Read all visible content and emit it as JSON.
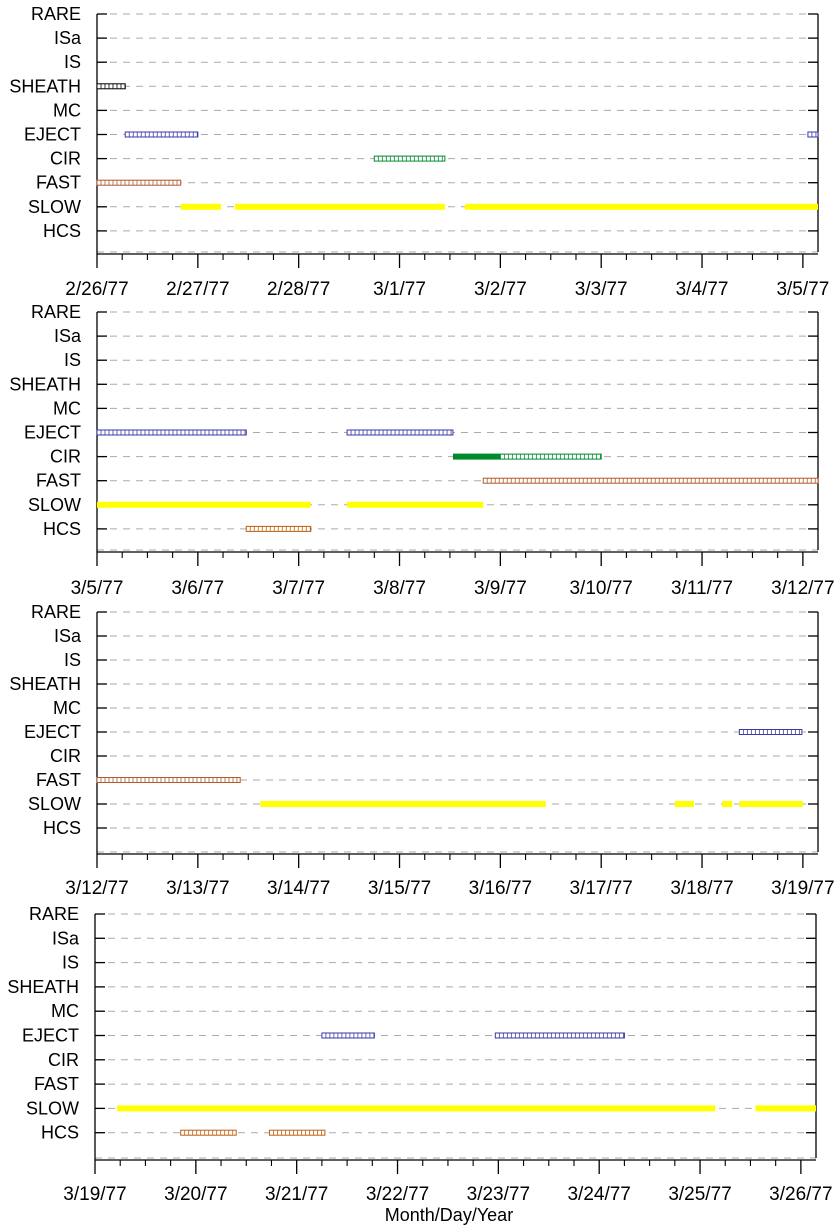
{
  "colors": {
    "axis": "#000000",
    "grid": "#aaaaaa",
    "SLOW": "#ffff00",
    "FAST": "#b05a2a",
    "CIR": "#008a2e",
    "EJECT": "#3a3aa8",
    "SHEATH": "#000000",
    "HCS": "#c06010"
  },
  "chart_data": {
    "type": "timeline",
    "xlabel": "Month/Day/Year",
    "categories": [
      "RARE",
      "ISa",
      "IS",
      "SHEATH",
      "MC",
      "EJECT",
      "CIR",
      "FAST",
      "SLOW",
      "HCS"
    ],
    "grid": true,
    "panels": [
      {
        "xlim": [
          0,
          7.15
        ],
        "tick_labels": [
          "2/26/77",
          "2/27/77",
          "2/28/77",
          "3/1/77",
          "3/2/77",
          "3/3/77",
          "3/4/77",
          "3/5/77"
        ],
        "intervals": [
          {
            "category": "SHEATH",
            "start": 0.0,
            "end": 0.28,
            "style": "hollow"
          },
          {
            "category": "EJECT",
            "start": 0.28,
            "end": 1.0,
            "style": "hollow"
          },
          {
            "category": "EJECT",
            "start": 7.05,
            "end": 7.15,
            "style": "hollow"
          },
          {
            "category": "CIR",
            "start": 2.75,
            "end": 3.45,
            "style": "hollow"
          },
          {
            "category": "FAST",
            "start": 0.0,
            "end": 0.83,
            "style": "hollow"
          },
          {
            "category": "SLOW",
            "start": 0.83,
            "end": 1.23,
            "style": "solid"
          },
          {
            "category": "SLOW",
            "start": 1.37,
            "end": 3.45,
            "style": "solid"
          },
          {
            "category": "SLOW",
            "start": 3.65,
            "end": 7.15,
            "style": "solid"
          }
        ]
      },
      {
        "xlim": [
          0,
          7.15
        ],
        "tick_labels": [
          "3/5/77",
          "3/6/77",
          "3/7/77",
          "3/8/77",
          "3/9/77",
          "3/10/77",
          "3/11/77",
          "3/12/77"
        ],
        "intervals": [
          {
            "category": "EJECT",
            "start": 0.0,
            "end": 1.48,
            "style": "hollow"
          },
          {
            "category": "EJECT",
            "start": 2.48,
            "end": 3.53,
            "style": "hollow"
          },
          {
            "category": "CIR",
            "start": 3.53,
            "end": 4.0,
            "style": "solid"
          },
          {
            "category": "CIR",
            "start": 4.0,
            "end": 5.0,
            "style": "hollow"
          },
          {
            "category": "FAST",
            "start": 3.83,
            "end": 7.15,
            "style": "hollow"
          },
          {
            "category": "SLOW",
            "start": 0.0,
            "end": 2.12,
            "style": "solid"
          },
          {
            "category": "SLOW",
            "start": 2.48,
            "end": 3.83,
            "style": "solid"
          },
          {
            "category": "HCS",
            "start": 1.48,
            "end": 2.12,
            "style": "hollow"
          }
        ]
      },
      {
        "xlim": [
          0,
          7.15
        ],
        "tick_labels": [
          "3/12/77",
          "3/13/77",
          "3/14/77",
          "3/15/77",
          "3/16/77",
          "3/17/77",
          "3/18/77",
          "3/19/77"
        ],
        "intervals": [
          {
            "category": "EJECT",
            "start": 6.37,
            "end": 6.99,
            "style": "hollow"
          },
          {
            "category": "FAST",
            "start": 0.0,
            "end": 1.42,
            "style": "hollow"
          },
          {
            "category": "SLOW",
            "start": 1.62,
            "end": 4.45,
            "style": "solid"
          },
          {
            "category": "SLOW",
            "start": 5.73,
            "end": 5.92,
            "style": "solid"
          },
          {
            "category": "SLOW",
            "start": 6.2,
            "end": 6.3,
            "style": "solid"
          },
          {
            "category": "SLOW",
            "start": 6.37,
            "end": 7.0,
            "style": "solid"
          }
        ]
      },
      {
        "xlim": [
          0,
          7.15
        ],
        "tick_labels": [
          "3/19/77",
          "3/20/77",
          "3/21/77",
          "3/22/77",
          "3/23/77",
          "3/24/77",
          "3/25/77",
          "3/26/77"
        ],
        "intervals": [
          {
            "category": "EJECT",
            "start": 2.25,
            "end": 2.77,
            "style": "hollow"
          },
          {
            "category": "EJECT",
            "start": 3.97,
            "end": 5.25,
            "style": "hollow"
          },
          {
            "category": "SLOW",
            "start": 0.22,
            "end": 6.15,
            "style": "solid"
          },
          {
            "category": "SLOW",
            "start": 6.55,
            "end": 7.15,
            "style": "solid"
          },
          {
            "category": "HCS",
            "start": 0.85,
            "end": 1.4,
            "style": "hollow"
          },
          {
            "category": "HCS",
            "start": 1.73,
            "end": 2.28,
            "style": "hollow"
          }
        ]
      }
    ]
  }
}
